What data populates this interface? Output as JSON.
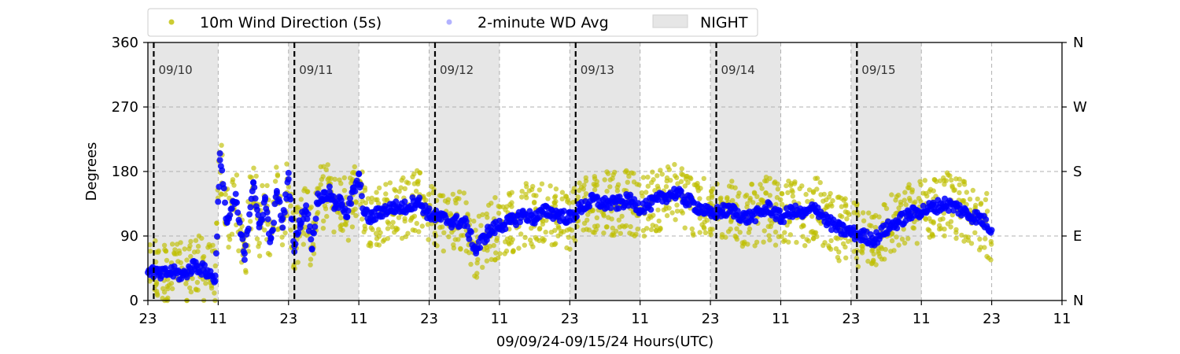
{
  "chart_data": {
    "type": "scatter",
    "xlabel": "09/09/24-09/15/24  Hours(UTC)",
    "ylabel": "Degrees",
    "x_tick_labels": [
      "23",
      "11",
      "23",
      "11",
      "23",
      "11",
      "23",
      "11",
      "23",
      "11",
      "23",
      "11",
      "23",
      "11"
    ],
    "x_range_hours": [
      0,
      156
    ],
    "x_start": "09/09/24 23:00 UTC",
    "ylim": [
      0,
      360
    ],
    "y_ticks": [
      "0",
      "90",
      "180",
      "270",
      "360"
    ],
    "y2_ticks": [
      "N",
      "E",
      "S",
      "W",
      "N"
    ],
    "grid": true,
    "legend": {
      "placement": "top",
      "items": [
        {
          "label": "10m Wind Direction (5s)",
          "color": "#bfbf00"
        },
        {
          "label": "2-minute WD Avg",
          "color": "#0000ff"
        },
        {
          "label": "NIGHT",
          "color": "#e6e6e6"
        }
      ]
    },
    "day_markers": [
      {
        "label": "09/10",
        "hour": 1
      },
      {
        "label": "09/11",
        "hour": 25
      },
      {
        "label": "09/12",
        "hour": 49
      },
      {
        "label": "09/13",
        "hour": 73
      },
      {
        "label": "09/14",
        "hour": 97
      },
      {
        "label": "09/15",
        "hour": 121
      }
    ],
    "night_spans_hours": [
      [
        0,
        12
      ],
      [
        24,
        36
      ],
      [
        48,
        60
      ],
      [
        72,
        84
      ],
      [
        96,
        108
      ],
      [
        120,
        132
      ]
    ],
    "series": [
      {
        "name": "2-minute WD Avg",
        "color": "#0000ff",
        "hours": [
          0,
          2,
          4,
          6,
          8,
          10,
          11.5,
          12.3,
          13.5,
          15,
          16.5,
          18,
          19,
          20,
          21,
          22,
          23,
          24,
          25,
          26,
          27,
          28,
          29,
          30,
          31,
          32,
          33,
          34,
          35,
          36,
          37,
          38,
          40,
          42,
          44,
          46,
          48,
          50,
          52,
          54,
          56,
          58,
          60,
          62,
          64,
          66,
          68,
          70,
          72,
          74,
          76,
          78,
          80,
          82,
          84,
          86,
          88,
          90,
          92,
          94,
          96,
          98,
          100,
          102,
          104,
          106,
          108,
          110,
          112,
          114,
          116,
          118,
          120,
          122,
          124,
          126,
          128,
          130,
          132,
          134,
          136,
          138,
          140,
          142,
          144
        ],
        "values": [
          45,
          35,
          40,
          35,
          50,
          40,
          30,
          200,
          110,
          140,
          60,
          170,
          100,
          140,
          80,
          150,
          110,
          170,
          75,
          110,
          130,
          80,
          140,
          145,
          150,
          130,
          140,
          120,
          150,
          170,
          120,
          115,
          125,
          130,
          130,
          140,
          120,
          115,
          110,
          110,
          70,
          95,
          105,
          110,
          120,
          115,
          125,
          120,
          115,
          130,
          140,
          135,
          135,
          140,
          130,
          135,
          145,
          150,
          140,
          130,
          120,
          125,
          125,
          115,
          120,
          130,
          115,
          125,
          120,
          130,
          110,
          100,
          95,
          90,
          85,
          100,
          110,
          120,
          125,
          130,
          135,
          130,
          120,
          115,
          100
        ]
      },
      {
        "name": "10m Wind Direction (5s)",
        "color": "#bfbf00",
        "hours": [
          0,
          2,
          4,
          6,
          8,
          10,
          11.5,
          12.3,
          13.5,
          15,
          16.5,
          18,
          19,
          20,
          21,
          22,
          23,
          24,
          25,
          26,
          27,
          28,
          29,
          30,
          31,
          32,
          33,
          34,
          35,
          36,
          37,
          38,
          40,
          42,
          44,
          46,
          48,
          50,
          52,
          54,
          56,
          58,
          60,
          62,
          64,
          66,
          68,
          70,
          72,
          74,
          76,
          78,
          80,
          82,
          84,
          86,
          88,
          90,
          92,
          94,
          96,
          98,
          100,
          102,
          104,
          106,
          108,
          110,
          112,
          114,
          116,
          118,
          120,
          122,
          124,
          126,
          128,
          130,
          132,
          134,
          136,
          138,
          140,
          142,
          144
        ],
        "values": [
          45,
          35,
          40,
          35,
          50,
          40,
          30,
          200,
          110,
          140,
          60,
          170,
          100,
          140,
          80,
          150,
          110,
          170,
          75,
          110,
          130,
          80,
          140,
          145,
          150,
          130,
          140,
          120,
          150,
          170,
          120,
          115,
          125,
          130,
          130,
          140,
          120,
          115,
          110,
          110,
          70,
          95,
          105,
          110,
          120,
          115,
          125,
          120,
          115,
          130,
          140,
          135,
          135,
          140,
          130,
          135,
          145,
          150,
          140,
          130,
          120,
          125,
          125,
          115,
          120,
          130,
          115,
          125,
          120,
          130,
          110,
          100,
          95,
          90,
          85,
          100,
          110,
          120,
          125,
          130,
          135,
          130,
          120,
          115,
          100
        ],
        "spread_degrees": 45
      }
    ]
  }
}
